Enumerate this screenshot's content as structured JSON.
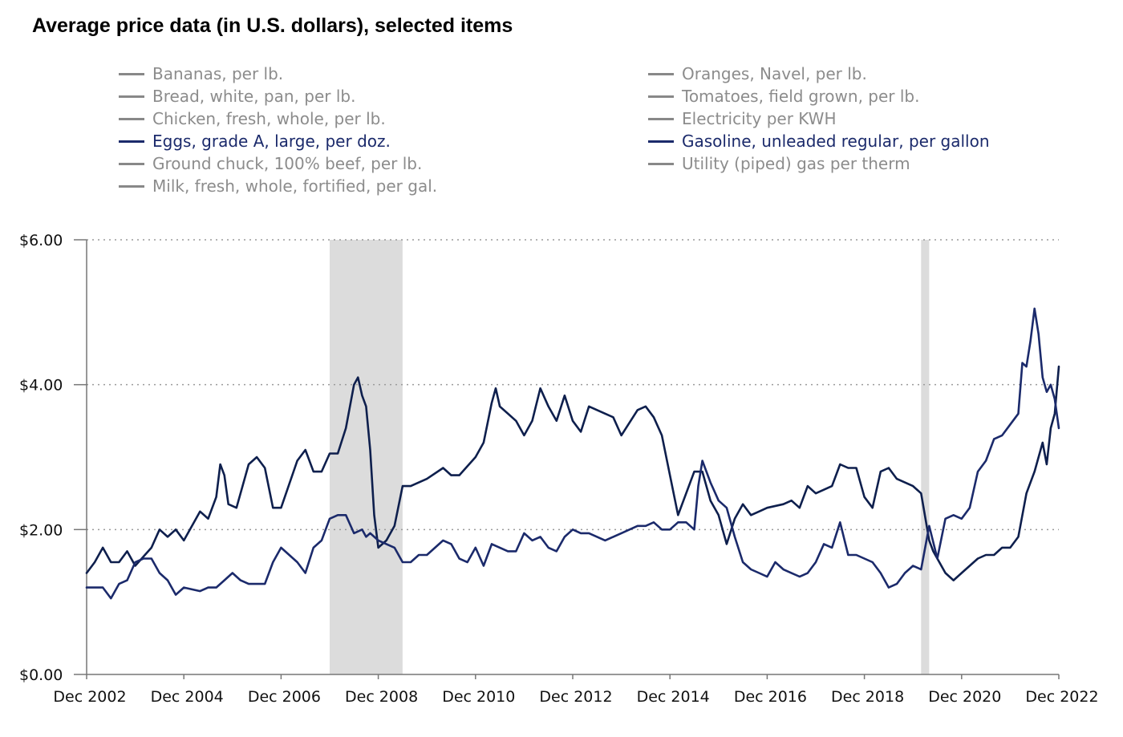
{
  "chart_data": {
    "type": "line",
    "title": "Average price data (in U.S. dollars), selected items",
    "legend": [
      {
        "label": "Bananas, per lb.",
        "active": false
      },
      {
        "label": "Bread, white, pan, per lb.",
        "active": false
      },
      {
        "label": "Chicken, fresh, whole, per lb.",
        "active": false
      },
      {
        "label": "Eggs, grade A, large, per doz.",
        "active": true
      },
      {
        "label": "Ground chuck, 100% beef, per lb.",
        "active": false
      },
      {
        "label": "Milk, fresh, whole, fortified, per gal.",
        "active": false
      },
      {
        "label": "Oranges, Navel, per lb.",
        "active": false
      },
      {
        "label": "Tomatoes, field grown, per lb.",
        "active": false
      },
      {
        "label": "Electricity per KWH",
        "active": false
      },
      {
        "label": "Gasoline, unleaded regular, per gallon",
        "active": true
      },
      {
        "label": "Utility (piped) gas per therm",
        "active": false
      }
    ],
    "x_ticks": [
      "Dec 2002",
      "Dec 2004",
      "Dec 2006",
      "Dec 2008",
      "Dec 2010",
      "Dec 2012",
      "Dec 2014",
      "Dec 2016",
      "Dec 2018",
      "Dec 2020",
      "Dec 2022"
    ],
    "x_range": [
      2002.917,
      2022.917
    ],
    "y_ticks": [
      "$0.00",
      "$2.00",
      "$4.00",
      "$6.00"
    ],
    "y_tick_values": [
      0,
      2,
      4,
      6
    ],
    "ylim": [
      0,
      6
    ],
    "grid": "horizontal dotted",
    "recessions": [
      [
        2007.917,
        2009.417
      ],
      [
        2020.083,
        2020.25
      ]
    ],
    "series": [
      {
        "name": "Gasoline, unleaded regular, per gallon",
        "color": "#0e1f4d",
        "points": [
          [
            2002.917,
            1.4
          ],
          [
            2003.083,
            1.55
          ],
          [
            2003.25,
            1.75
          ],
          [
            2003.417,
            1.55
          ],
          [
            2003.583,
            1.55
          ],
          [
            2003.75,
            1.7
          ],
          [
            2003.917,
            1.5
          ],
          [
            2004.25,
            1.75
          ],
          [
            2004.417,
            2.0
          ],
          [
            2004.583,
            1.9
          ],
          [
            2004.75,
            2.0
          ],
          [
            2004.917,
            1.85
          ],
          [
            2005.25,
            2.25
          ],
          [
            2005.417,
            2.15
          ],
          [
            2005.583,
            2.45
          ],
          [
            2005.667,
            2.9
          ],
          [
            2005.75,
            2.75
          ],
          [
            2005.833,
            2.35
          ],
          [
            2006.0,
            2.3
          ],
          [
            2006.25,
            2.9
          ],
          [
            2006.417,
            3.0
          ],
          [
            2006.583,
            2.85
          ],
          [
            2006.75,
            2.3
          ],
          [
            2006.917,
            2.3
          ],
          [
            2007.25,
            2.95
          ],
          [
            2007.417,
            3.1
          ],
          [
            2007.583,
            2.8
          ],
          [
            2007.75,
            2.8
          ],
          [
            2007.917,
            3.05
          ],
          [
            2008.083,
            3.05
          ],
          [
            2008.25,
            3.4
          ],
          [
            2008.417,
            4.0
          ],
          [
            2008.5,
            4.1
          ],
          [
            2008.583,
            3.85
          ],
          [
            2008.667,
            3.7
          ],
          [
            2008.75,
            3.1
          ],
          [
            2008.833,
            2.2
          ],
          [
            2008.917,
            1.75
          ],
          [
            2009.083,
            1.85
          ],
          [
            2009.25,
            2.05
          ],
          [
            2009.417,
            2.6
          ],
          [
            2009.583,
            2.6
          ],
          [
            2009.917,
            2.7
          ],
          [
            2010.25,
            2.85
          ],
          [
            2010.417,
            2.75
          ],
          [
            2010.583,
            2.75
          ],
          [
            2010.917,
            3.0
          ],
          [
            2011.083,
            3.2
          ],
          [
            2011.25,
            3.75
          ],
          [
            2011.333,
            3.95
          ],
          [
            2011.417,
            3.7
          ],
          [
            2011.75,
            3.5
          ],
          [
            2011.917,
            3.3
          ],
          [
            2012.083,
            3.5
          ],
          [
            2012.25,
            3.95
          ],
          [
            2012.417,
            3.7
          ],
          [
            2012.583,
            3.5
          ],
          [
            2012.75,
            3.85
          ],
          [
            2012.917,
            3.5
          ],
          [
            2013.083,
            3.35
          ],
          [
            2013.25,
            3.7
          ],
          [
            2013.417,
            3.65
          ],
          [
            2013.583,
            3.6
          ],
          [
            2013.75,
            3.55
          ],
          [
            2013.917,
            3.3
          ],
          [
            2014.25,
            3.65
          ],
          [
            2014.417,
            3.7
          ],
          [
            2014.583,
            3.55
          ],
          [
            2014.75,
            3.3
          ],
          [
            2014.917,
            2.75
          ],
          [
            2015.083,
            2.2
          ],
          [
            2015.25,
            2.5
          ],
          [
            2015.417,
            2.8
          ],
          [
            2015.583,
            2.8
          ],
          [
            2015.75,
            2.4
          ],
          [
            2015.917,
            2.2
          ],
          [
            2016.083,
            1.8
          ],
          [
            2016.25,
            2.15
          ],
          [
            2016.417,
            2.35
          ],
          [
            2016.583,
            2.2
          ],
          [
            2016.75,
            2.25
          ],
          [
            2016.917,
            2.3
          ],
          [
            2017.25,
            2.35
          ],
          [
            2017.417,
            2.4
          ],
          [
            2017.583,
            2.3
          ],
          [
            2017.75,
            2.6
          ],
          [
            2017.917,
            2.5
          ],
          [
            2018.25,
            2.6
          ],
          [
            2018.417,
            2.9
          ],
          [
            2018.583,
            2.85
          ],
          [
            2018.75,
            2.85
          ],
          [
            2018.917,
            2.45
          ],
          [
            2019.083,
            2.3
          ],
          [
            2019.25,
            2.8
          ],
          [
            2019.417,
            2.85
          ],
          [
            2019.583,
            2.7
          ],
          [
            2019.75,
            2.65
          ],
          [
            2019.917,
            2.6
          ],
          [
            2020.083,
            2.5
          ],
          [
            2020.25,
            1.85
          ],
          [
            2020.333,
            1.7
          ],
          [
            2020.417,
            1.6
          ],
          [
            2020.583,
            1.4
          ],
          [
            2020.75,
            1.3
          ],
          [
            2020.917,
            1.4
          ],
          [
            2021.083,
            1.5
          ],
          [
            2021.25,
            1.6
          ],
          [
            2021.417,
            1.65
          ],
          [
            2021.583,
            1.65
          ],
          [
            2021.75,
            1.75
          ],
          [
            2021.917,
            1.75
          ],
          [
            2022.083,
            1.9
          ],
          [
            2022.25,
            2.5
          ],
          [
            2022.417,
            2.8
          ],
          [
            2022.583,
            3.2
          ],
          [
            2022.667,
            2.9
          ],
          [
            2022.75,
            3.4
          ],
          [
            2022.833,
            3.6
          ],
          [
            2022.917,
            4.25
          ]
        ]
      },
      {
        "name": "Eggs, grade A, large, per doz.",
        "color": "#1b2a6b",
        "points": [
          [
            2002.917,
            1.2
          ],
          [
            2003.083,
            1.2
          ],
          [
            2003.25,
            1.2
          ],
          [
            2003.417,
            1.05
          ],
          [
            2003.583,
            1.25
          ],
          [
            2003.75,
            1.3
          ],
          [
            2003.917,
            1.55
          ],
          [
            2004.083,
            1.6
          ],
          [
            2004.25,
            1.6
          ],
          [
            2004.417,
            1.4
          ],
          [
            2004.583,
            1.3
          ],
          [
            2004.75,
            1.1
          ],
          [
            2004.917,
            1.2
          ],
          [
            2005.25,
            1.15
          ],
          [
            2005.417,
            1.2
          ],
          [
            2005.583,
            1.2
          ],
          [
            2005.75,
            1.3
          ],
          [
            2005.917,
            1.4
          ],
          [
            2006.083,
            1.3
          ],
          [
            2006.25,
            1.25
          ],
          [
            2006.417,
            1.25
          ],
          [
            2006.583,
            1.25
          ],
          [
            2006.75,
            1.55
          ],
          [
            2006.917,
            1.75
          ],
          [
            2007.25,
            1.55
          ],
          [
            2007.417,
            1.4
          ],
          [
            2007.583,
            1.75
          ],
          [
            2007.75,
            1.85
          ],
          [
            2007.917,
            2.15
          ],
          [
            2008.083,
            2.2
          ],
          [
            2008.25,
            2.2
          ],
          [
            2008.417,
            1.95
          ],
          [
            2008.583,
            2.0
          ],
          [
            2008.667,
            1.9
          ],
          [
            2008.75,
            1.95
          ],
          [
            2008.917,
            1.85
          ],
          [
            2009.083,
            1.8
          ],
          [
            2009.25,
            1.75
          ],
          [
            2009.417,
            1.55
          ],
          [
            2009.583,
            1.55
          ],
          [
            2009.75,
            1.65
          ],
          [
            2009.917,
            1.65
          ],
          [
            2010.25,
            1.85
          ],
          [
            2010.417,
            1.8
          ],
          [
            2010.583,
            1.6
          ],
          [
            2010.75,
            1.55
          ],
          [
            2010.917,
            1.75
          ],
          [
            2011.083,
            1.5
          ],
          [
            2011.25,
            1.8
          ],
          [
            2011.417,
            1.75
          ],
          [
            2011.583,
            1.7
          ],
          [
            2011.75,
            1.7
          ],
          [
            2011.917,
            1.95
          ],
          [
            2012.083,
            1.85
          ],
          [
            2012.25,
            1.9
          ],
          [
            2012.417,
            1.75
          ],
          [
            2012.583,
            1.7
          ],
          [
            2012.75,
            1.9
          ],
          [
            2012.917,
            2.0
          ],
          [
            2013.083,
            1.95
          ],
          [
            2013.25,
            1.95
          ],
          [
            2013.417,
            1.9
          ],
          [
            2013.583,
            1.85
          ],
          [
            2013.75,
            1.9
          ],
          [
            2013.917,
            1.95
          ],
          [
            2014.25,
            2.05
          ],
          [
            2014.417,
            2.05
          ],
          [
            2014.583,
            2.1
          ],
          [
            2014.75,
            2.0
          ],
          [
            2014.917,
            2.0
          ],
          [
            2015.083,
            2.1
          ],
          [
            2015.25,
            2.1
          ],
          [
            2015.417,
            2.0
          ],
          [
            2015.5,
            2.6
          ],
          [
            2015.583,
            2.95
          ],
          [
            2015.75,
            2.65
          ],
          [
            2015.917,
            2.4
          ],
          [
            2016.083,
            2.3
          ],
          [
            2016.25,
            1.9
          ],
          [
            2016.417,
            1.55
          ],
          [
            2016.583,
            1.45
          ],
          [
            2016.75,
            1.4
          ],
          [
            2016.917,
            1.35
          ],
          [
            2017.083,
            1.55
          ],
          [
            2017.25,
            1.45
          ],
          [
            2017.417,
            1.4
          ],
          [
            2017.583,
            1.35
          ],
          [
            2017.75,
            1.4
          ],
          [
            2017.917,
            1.55
          ],
          [
            2018.083,
            1.8
          ],
          [
            2018.25,
            1.75
          ],
          [
            2018.417,
            2.1
          ],
          [
            2018.583,
            1.65
          ],
          [
            2018.75,
            1.65
          ],
          [
            2018.917,
            1.6
          ],
          [
            2019.083,
            1.55
          ],
          [
            2019.25,
            1.4
          ],
          [
            2019.417,
            1.2
          ],
          [
            2019.583,
            1.25
          ],
          [
            2019.75,
            1.4
          ],
          [
            2019.917,
            1.5
          ],
          [
            2020.083,
            1.45
          ],
          [
            2020.25,
            2.05
          ],
          [
            2020.417,
            1.6
          ],
          [
            2020.583,
            2.15
          ],
          [
            2020.75,
            2.2
          ],
          [
            2020.917,
            2.15
          ],
          [
            2021.083,
            2.3
          ],
          [
            2021.25,
            2.8
          ],
          [
            2021.417,
            2.95
          ],
          [
            2021.583,
            3.25
          ],
          [
            2021.75,
            3.3
          ],
          [
            2021.917,
            3.45
          ],
          [
            2022.083,
            3.6
          ],
          [
            2022.167,
            4.3
          ],
          [
            2022.25,
            4.25
          ],
          [
            2022.333,
            4.6
          ],
          [
            2022.417,
            5.05
          ],
          [
            2022.5,
            4.7
          ],
          [
            2022.583,
            4.1
          ],
          [
            2022.667,
            3.9
          ],
          [
            2022.75,
            4.0
          ],
          [
            2022.833,
            3.8
          ],
          [
            2022.917,
            3.4
          ]
        ]
      }
    ]
  }
}
